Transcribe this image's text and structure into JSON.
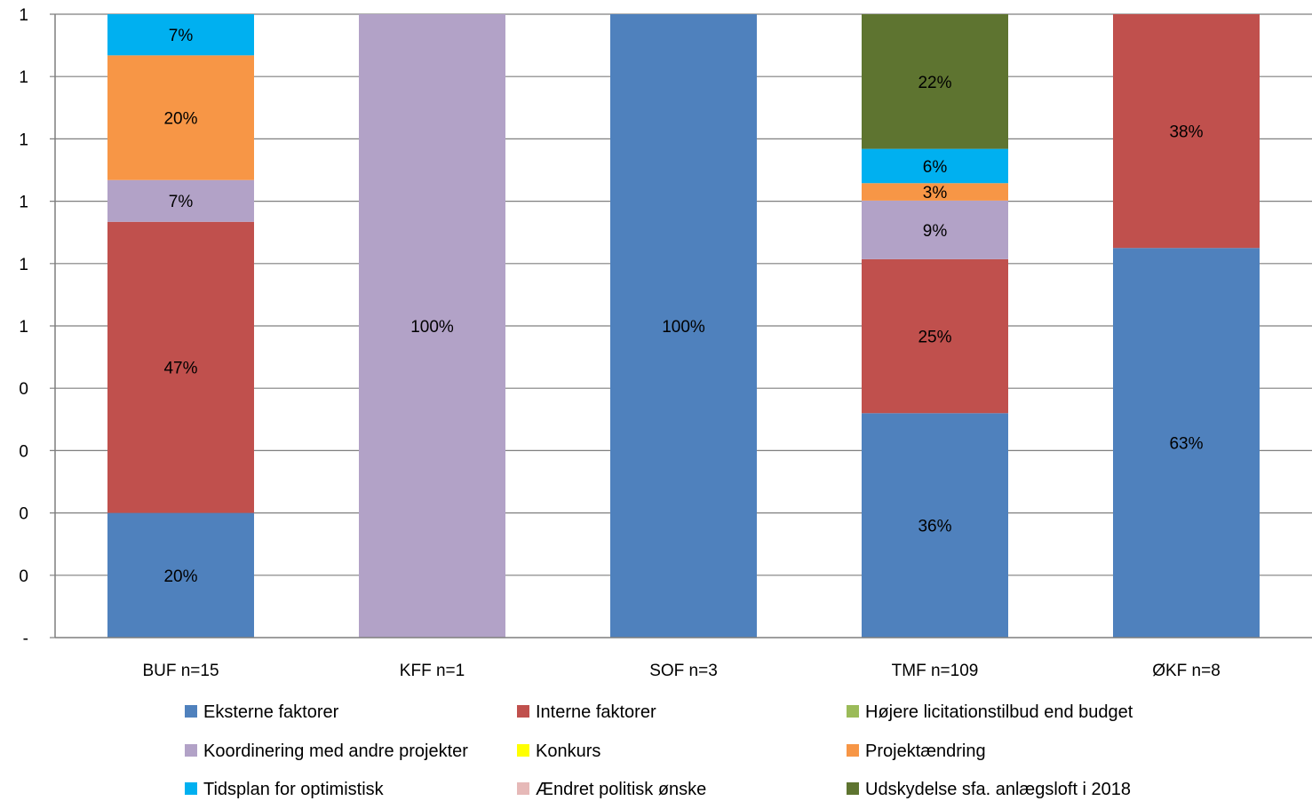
{
  "chart_data": {
    "type": "bar",
    "stacked": true,
    "percent": true,
    "categories": [
      "BUF n=15",
      "KFF n=1",
      "SOF n=3",
      "TMF n=109",
      "ØKF n=8"
    ],
    "y_tick_labels": [
      "-",
      "0",
      "0",
      "0",
      "0",
      "1",
      "1",
      "1",
      "1",
      "1",
      "1"
    ],
    "ylim": [
      0,
      1
    ],
    "grid": true,
    "legend_position": "bottom",
    "series": [
      {
        "name": "Eksterne faktorer",
        "color": "#4F81BD",
        "values": [
          0.2,
          0,
          1.0,
          0.36,
          0.625
        ],
        "labels": [
          "20%",
          "",
          "100%",
          "36%",
          "63%"
        ]
      },
      {
        "name": "Interne faktorer",
        "color": "#C0504D",
        "values": [
          0.467,
          0,
          0,
          0.247,
          0.375
        ],
        "labels": [
          "47%",
          "",
          "",
          "25%",
          "38%"
        ]
      },
      {
        "name": "Højere licitationstilbud end budget",
        "color": "#9BBB59",
        "values": [
          0,
          0,
          0,
          0,
          0
        ],
        "labels": [
          "",
          "",
          "",
          "",
          ""
        ]
      },
      {
        "name": "Koordinering med andre projekter",
        "color": "#B2A2C7",
        "values": [
          0.067,
          1.0,
          0,
          0.094,
          0
        ],
        "labels": [
          "7%",
          "100%",
          "",
          "9%",
          ""
        ]
      },
      {
        "name": "Konkurs",
        "color": "#FFFF00",
        "values": [
          0,
          0,
          0,
          0,
          0
        ],
        "labels": [
          "",
          "",
          "",
          "",
          ""
        ]
      },
      {
        "name": "Projektændring",
        "color": "#F79646",
        "values": [
          0.2,
          0,
          0,
          0.028,
          0
        ],
        "labels": [
          "20%",
          "",
          "",
          "3%",
          ""
        ]
      },
      {
        "name": "Tidsplan for optimistisk",
        "color": "#00B0F0",
        "values": [
          0.066,
          0,
          0,
          0.055,
          0
        ],
        "labels": [
          "7%",
          "",
          "",
          "6%",
          ""
        ]
      },
      {
        "name": "Ændret politisk ønske",
        "color": "#E6B9B8",
        "values": [
          0,
          0,
          0,
          0,
          0
        ],
        "labels": [
          "",
          "",
          "",
          "",
          ""
        ]
      },
      {
        "name": "Udskydelse sfa. anlægsloft i 2018",
        "color": "#5E7430",
        "values": [
          0,
          0,
          0,
          0.22,
          0
        ],
        "labels": [
          "",
          "",
          "",
          "22%",
          ""
        ]
      }
    ]
  }
}
